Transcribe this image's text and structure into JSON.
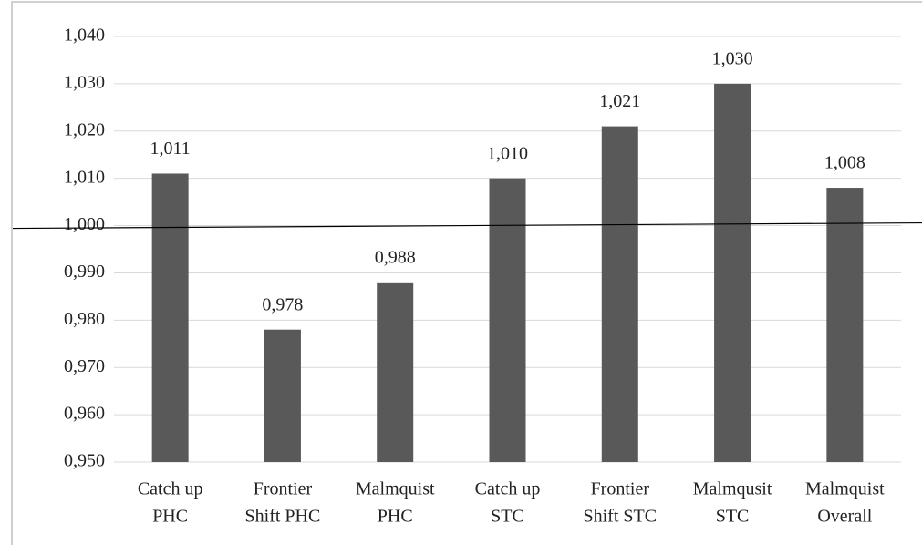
{
  "chart_data": {
    "type": "bar",
    "categories": [
      [
        "Catch up",
        "PHC"
      ],
      [
        "Frontier",
        "Shift PHC"
      ],
      [
        "Malmquist",
        "PHC"
      ],
      [
        "Catch up",
        "STC"
      ],
      [
        "Frontier",
        "Shift STC"
      ],
      [
        "Malmqusit",
        "STC"
      ],
      [
        "Malmquist",
        "Overall"
      ]
    ],
    "values": [
      1.011,
      0.978,
      0.988,
      1.01,
      1.021,
      1.03,
      1.008
    ],
    "value_labels": [
      "1,011",
      "0,978",
      "0,988",
      "1,010",
      "1,021",
      "1,030",
      "1,008"
    ],
    "color": "#595959",
    "ylim": [
      0.95,
      1.04
    ],
    "yticks": [
      {
        "value": 0.95,
        "label": "0,950"
      },
      {
        "value": 0.96,
        "label": "0,960"
      },
      {
        "value": 0.97,
        "label": "0,970"
      },
      {
        "value": 0.98,
        "label": "0,980"
      },
      {
        "value": 0.99,
        "label": "0,990"
      },
      {
        "value": 1.0,
        "label": "1,000"
      },
      {
        "value": 1.01,
        "label": "1,010"
      },
      {
        "value": 1.02,
        "label": "1,020"
      },
      {
        "value": 1.03,
        "label": "1,030"
      },
      {
        "value": 1.04,
        "label": "1,040"
      }
    ],
    "grid": true,
    "reference_line": 1.0
  }
}
